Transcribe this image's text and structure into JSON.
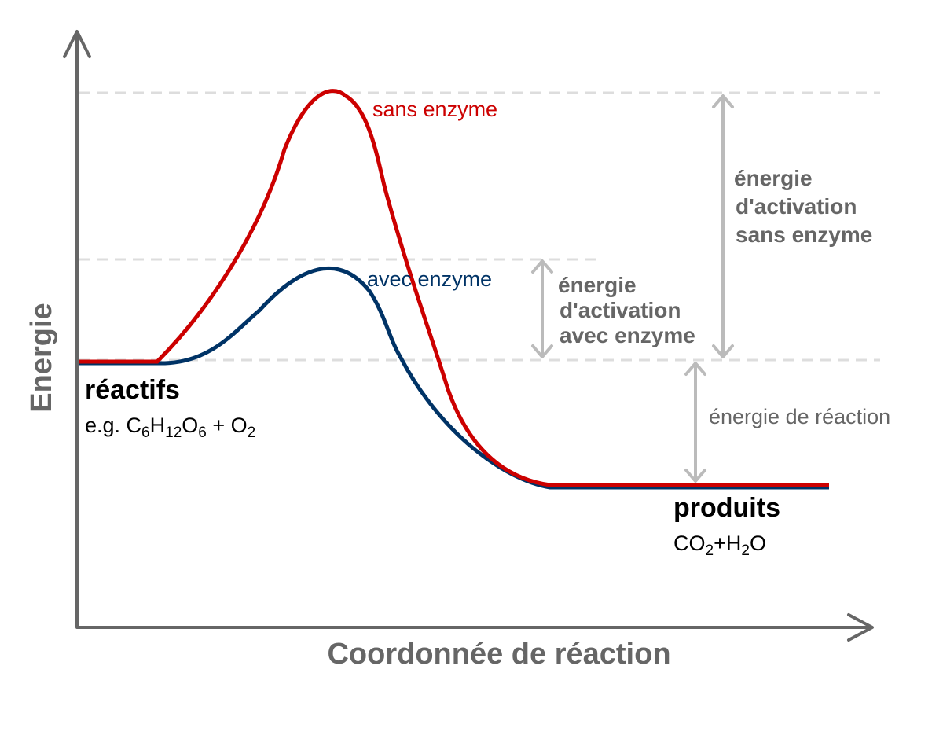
{
  "axes": {
    "y_label": "Energie",
    "x_label": "Coordonnée de réaction"
  },
  "curves": {
    "without_enzyme": "sans enzyme",
    "with_enzyme": "avec enzyme"
  },
  "reactants": {
    "label": "réactifs",
    "formula": [
      "e.g. C",
      "6",
      "H",
      "12",
      "O",
      "6",
      " + O",
      "2"
    ]
  },
  "products": {
    "label": "produits",
    "formula": [
      "CO",
      "2",
      "+H",
      "2",
      "O"
    ]
  },
  "annotations": {
    "activation_without": [
      "énergie",
      "d'activation",
      "sans enzyme"
    ],
    "activation_with": [
      "énergie",
      "d'activation",
      "avec enzyme"
    ],
    "reaction_energy": "énergie de réaction"
  }
}
